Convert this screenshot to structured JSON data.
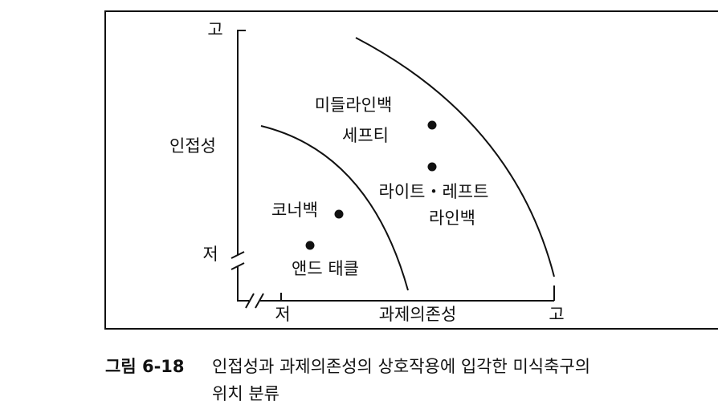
{
  "axes": {
    "y_high": "고",
    "y_label": "인접성",
    "y_low": "저",
    "x_low": "저",
    "x_label": "과제의존성",
    "x_high": "고"
  },
  "groups": [
    {
      "lines": [
        "미들라인백",
        "세프티"
      ]
    },
    {
      "lines": [
        "라이트・레프트",
        "라인백"
      ]
    },
    {
      "lines": [
        "코너백"
      ]
    },
    {
      "lines": [
        "앤드 태클"
      ]
    }
  ],
  "caption": {
    "number": "그림 6-18",
    "line1": "인접성과 과제의존성의 상호작용에 입각한 미식축구의",
    "line2": "위치 분류"
  }
}
